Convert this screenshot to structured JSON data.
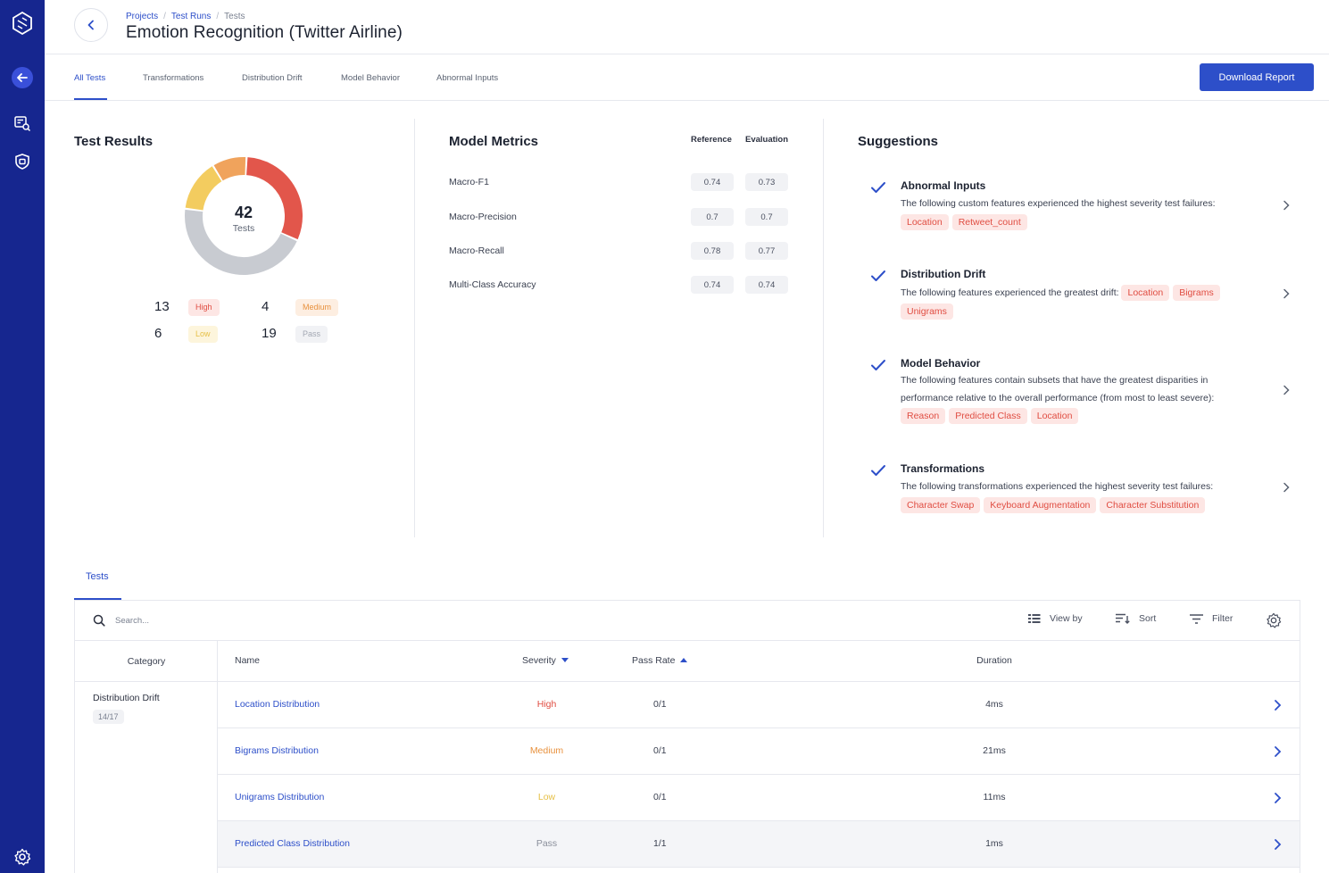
{
  "app": {
    "breadcrumbs": [
      "Projects",
      "Test Runs",
      "Tests"
    ],
    "breadcrumb_sep": "/",
    "title": "Emotion Recognition (Twitter Airline)"
  },
  "tabs": [
    "All Tests",
    "Transformations",
    "Distribution Drift",
    "Model Behavior",
    "Abnormal Inputs"
  ],
  "download_label": "Download Report",
  "test_results": {
    "title": "Test Results",
    "total": "42",
    "total_label": "Tests",
    "high_count": "13",
    "high_label": "High",
    "medium_count": "4",
    "medium_label": "Medium",
    "low_count": "6",
    "low_label": "Low",
    "pass_count": "19",
    "pass_label": "Pass",
    "colors": {
      "high": "#e2564b",
      "medium": "#f0a35c",
      "low": "#f3cc5f",
      "pass": "#c8cbd1"
    }
  },
  "metrics": {
    "title": "Model Metrics",
    "col_reference": "Reference",
    "col_evaluation": "Evaluation",
    "rows": [
      {
        "label": "Macro-F1",
        "reference": "0.74",
        "evaluation": "0.73"
      },
      {
        "label": "Macro-Precision",
        "reference": "0.7",
        "evaluation": "0.7"
      },
      {
        "label": "Macro-Recall",
        "reference": "0.78",
        "evaluation": "0.77"
      },
      {
        "label": "Multi-Class Accuracy",
        "reference": "0.74",
        "evaluation": "0.74"
      }
    ]
  },
  "suggestions": {
    "title": "Suggestions",
    "items": [
      {
        "title": "Abnormal Inputs",
        "text": "The following custom features experienced the highest severity test failures:",
        "tags": [
          "Location",
          "Retweet_count"
        ]
      },
      {
        "title": "Distribution Drift",
        "text": "The following features experienced the greatest drift:",
        "tags": [
          "Location",
          "Bigrams",
          "Unigrams"
        ]
      },
      {
        "title": "Model Behavior",
        "text": "The following features contain subsets that have the greatest disparities in performance relative to the overall performance (from most to least severe):",
        "tags": [
          "Reason",
          "Predicted Class",
          "Location"
        ]
      },
      {
        "title": "Transformations",
        "text": "The following transformations experienced the highest severity test failures:",
        "tags": [
          "Character Swap",
          "Keyboard Augmentation",
          "Character Substitution"
        ]
      }
    ]
  },
  "tests": {
    "tab_label": "Tests",
    "search_placeholder": "Search...",
    "view_by": "View by",
    "sort": "Sort",
    "filter": "Filter",
    "columns": {
      "category": "Category",
      "name": "Name",
      "severity": "Severity",
      "pass_rate": "Pass Rate",
      "duration": "Duration"
    },
    "category": {
      "name": "Distribution Drift",
      "count": "14/17"
    },
    "rows": [
      {
        "name": "Location Distribution",
        "severity": "High",
        "pass_rate": "0/1",
        "duration": "4ms",
        "sev_color": "#e04d42"
      },
      {
        "name": "Bigrams Distribution",
        "severity": "Medium",
        "pass_rate": "0/1",
        "duration": "21ms",
        "sev_color": "#e8913d"
      },
      {
        "name": "Unigrams Distribution",
        "severity": "Low",
        "pass_rate": "0/1",
        "duration": "11ms",
        "sev_color": "#e6c047"
      },
      {
        "name": "Predicted Class Distribution",
        "severity": "Pass",
        "pass_rate": "1/1",
        "duration": "1ms",
        "sev_color": "#8a8f9b"
      }
    ]
  }
}
